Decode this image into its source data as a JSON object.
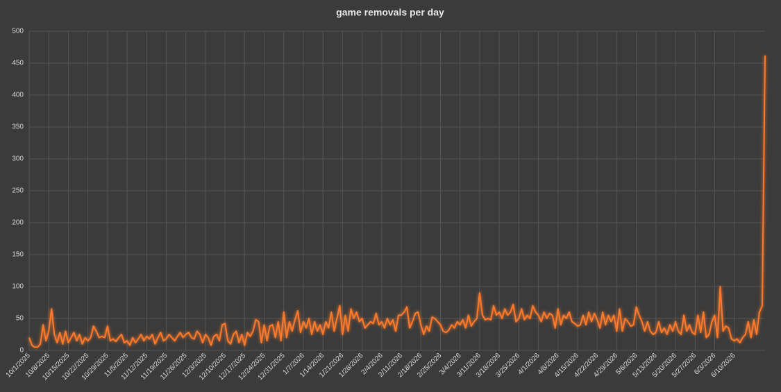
{
  "chart_data": {
    "type": "line",
    "title": "game removals per day",
    "categories": [
      "10/1/2025",
      null,
      null,
      null,
      null,
      null,
      null,
      "10/8/2025",
      null,
      null,
      null,
      null,
      null,
      null,
      "10/15/2025",
      null,
      null,
      null,
      null,
      null,
      null,
      "10/22/2025",
      null,
      null,
      null,
      null,
      null,
      null,
      "10/29/2025",
      null,
      null,
      null,
      null,
      null,
      null,
      "11/5/2025",
      null,
      null,
      null,
      null,
      null,
      null,
      "11/12/2025",
      null,
      null,
      null,
      null,
      null,
      null,
      "11/19/2025",
      null,
      null,
      null,
      null,
      null,
      null,
      "11/26/2025",
      null,
      null,
      null,
      null,
      null,
      null,
      "12/3/2025",
      null,
      null,
      null,
      null,
      null,
      null,
      "12/10/2025",
      null,
      null,
      null,
      null,
      null,
      null,
      "12/17/2025",
      null,
      null,
      null,
      null,
      null,
      null,
      "12/24/2025",
      null,
      null,
      null,
      null,
      null,
      null,
      "12/31/2025",
      null,
      null,
      null,
      null,
      null,
      null,
      "1/7/2026",
      null,
      null,
      null,
      null,
      null,
      null,
      "1/14/2026",
      null,
      null,
      null,
      null,
      null,
      null,
      "1/21/2026",
      null,
      null,
      null,
      null,
      null,
      null,
      "1/28/2026",
      null,
      null,
      null,
      null,
      null,
      null,
      "2/4/2026",
      null,
      null,
      null,
      null,
      null,
      null,
      "2/11/2026",
      null,
      null,
      null,
      null,
      null,
      null,
      "2/18/2026",
      null,
      null,
      null,
      null,
      null,
      null,
      "2/25/2026",
      null,
      null,
      null,
      null,
      null,
      null,
      "3/4/2026",
      null,
      null,
      null,
      null,
      null,
      null,
      "3/11/2026",
      null,
      null,
      null,
      null,
      null,
      null,
      "3/18/2026",
      null,
      null,
      null,
      null,
      null,
      null,
      "3/25/2026",
      null,
      null,
      null,
      null,
      null,
      null,
      "4/1/2026",
      null,
      null,
      null,
      null,
      null,
      null,
      "4/8/2026",
      null,
      null,
      null,
      null,
      null,
      null,
      "4/15/2026",
      null,
      null,
      null,
      null,
      null,
      null,
      "4/22/2026",
      null,
      null,
      null,
      null,
      null,
      null,
      "4/29/2026",
      null,
      null,
      null,
      null,
      null,
      null,
      "5/6/2026",
      null,
      null,
      null,
      null,
      null,
      null,
      "5/13/2026",
      null,
      null,
      null,
      null,
      null,
      null,
      "5/20/2026",
      null,
      null,
      null,
      null,
      null,
      null,
      "5/27/2026",
      null,
      null,
      null,
      null,
      null,
      null,
      "6/3/2026",
      null,
      null,
      null,
      null,
      null,
      null,
      "6/10/2026",
      null,
      null,
      null,
      null,
      null,
      null,
      null,
      null,
      null,
      null,
      null
    ],
    "values": [
      20,
      8,
      5,
      5,
      10,
      40,
      15,
      30,
      65,
      25,
      12,
      28,
      10,
      30,
      12,
      20,
      28,
      15,
      25,
      10,
      20,
      15,
      20,
      38,
      30,
      20,
      22,
      20,
      38,
      15,
      18,
      14,
      20,
      25,
      12,
      15,
      8,
      20,
      12,
      18,
      25,
      15,
      22,
      18,
      25,
      10,
      20,
      28,
      15,
      18,
      25,
      20,
      15,
      22,
      28,
      20,
      25,
      28,
      20,
      18,
      30,
      25,
      12,
      25,
      20,
      8,
      22,
      25,
      15,
      40,
      42,
      15,
      10,
      25,
      30,
      12,
      25,
      8,
      28,
      22,
      30,
      48,
      45,
      12,
      40,
      15,
      38,
      40,
      20,
      45,
      15,
      60,
      20,
      45,
      30,
      48,
      62,
      28,
      45,
      35,
      50,
      25,
      45,
      30,
      40,
      25,
      45,
      35,
      60,
      30,
      50,
      70,
      25,
      55,
      30,
      65,
      50,
      60,
      45,
      50,
      35,
      40,
      45,
      42,
      58,
      40,
      45,
      35,
      50,
      40,
      48,
      30,
      55,
      55,
      60,
      68,
      35,
      45,
      58,
      60,
      40,
      25,
      38,
      30,
      52,
      50,
      45,
      40,
      30,
      28,
      32,
      40,
      35,
      45,
      40,
      48,
      35,
      55,
      38,
      45,
      50,
      90,
      55,
      48,
      50,
      48,
      70,
      55,
      60,
      50,
      65,
      55,
      60,
      72,
      45,
      50,
      65,
      48,
      55,
      50,
      70,
      60,
      55,
      45,
      60,
      50,
      58,
      55,
      35,
      65,
      40,
      55,
      50,
      60,
      45,
      42,
      38,
      40,
      55,
      40,
      60,
      45,
      58,
      48,
      35,
      60,
      40,
      55,
      45,
      55,
      30,
      65,
      30,
      50,
      45,
      38,
      40,
      68,
      55,
      45,
      30,
      45,
      30,
      25,
      28,
      45,
      28,
      35,
      25,
      40,
      30,
      45,
      30,
      25,
      55,
      30,
      40,
      28,
      25,
      55,
      28,
      60,
      20,
      25,
      45,
      55,
      20,
      100,
      30,
      38,
      35,
      18,
      15,
      18,
      12,
      20,
      25,
      45,
      20,
      48,
      25,
      60,
      70,
      462
    ],
    "color": "#ff7a2a",
    "ylim": [
      0,
      500
    ],
    "yticks": [
      0,
      50,
      100,
      150,
      200,
      250,
      300,
      350,
      400,
      450,
      500
    ],
    "grid": true
  }
}
